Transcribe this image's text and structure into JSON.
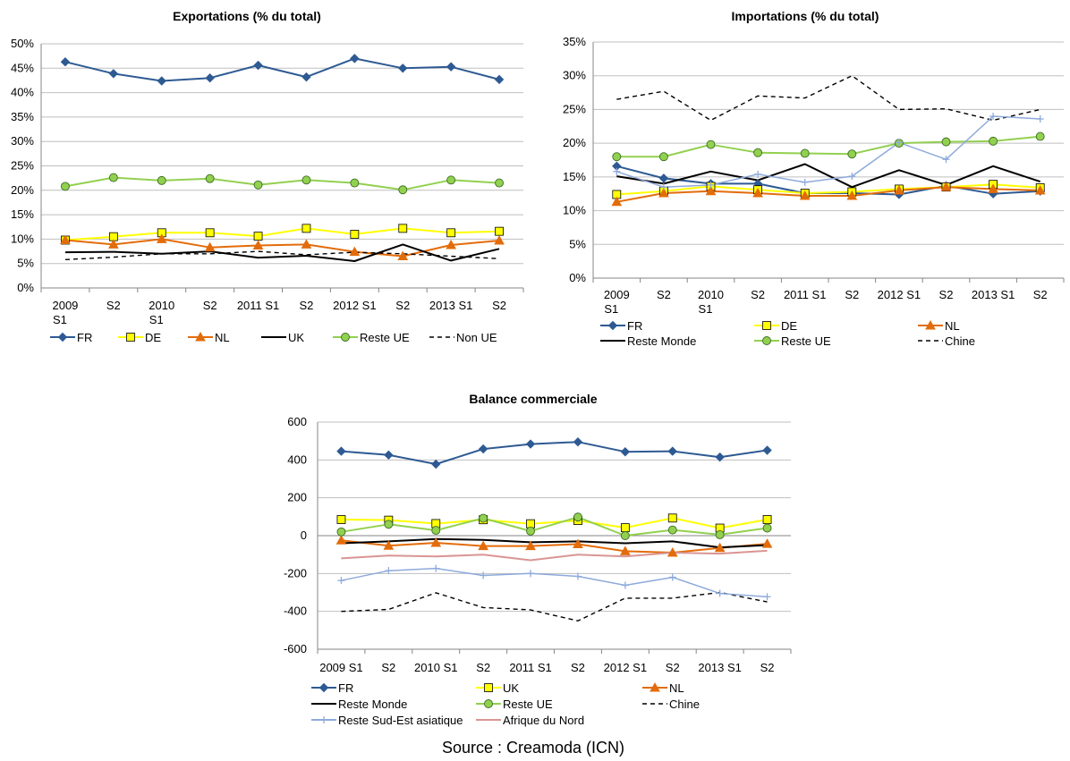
{
  "colors": {
    "FR": "#2e5a93",
    "DE": "#ffff00",
    "UK_export": "#000000",
    "UK_balance": "#ffff00",
    "NL": "#e36c0a",
    "Reste UE": "#92d050",
    "Reste Monde": "#000000",
    "Non UE": "#000000",
    "Chine": "#000000",
    "Reste Sud-Est asiatique": "#8eaadb",
    "Afrique du Nord": "#d99594",
    "grid": "#bfbfbf"
  },
  "source": "Source : Creamoda (ICN)",
  "chart_data": [
    {
      "type": "line",
      "title": "Exportations (% du total)",
      "x": [
        "2009 S1",
        "S2",
        "2010 S1",
        "S2",
        "2011 S1",
        "S2",
        "2012 S1",
        "S2",
        "2013 S1",
        "S2"
      ],
      "ylim": [
        0,
        50
      ],
      "yticks": [
        "0%",
        "5%",
        "10%",
        "15%",
        "20%",
        "25%",
        "30%",
        "35%",
        "40%",
        "45%",
        "50%"
      ],
      "grid": true,
      "legend_position": "bottom",
      "series": [
        {
          "name": "FR",
          "marker": "diamond",
          "values": [
            46.3,
            43.9,
            42.4,
            43.0,
            45.6,
            43.2,
            47.0,
            45.0,
            45.3,
            42.7
          ]
        },
        {
          "name": "DE",
          "marker": "square",
          "values": [
            9.8,
            10.5,
            11.3,
            11.3,
            10.6,
            12.2,
            11.0,
            12.2,
            11.3,
            11.6
          ]
        },
        {
          "name": "NL",
          "marker": "triangle",
          "values": [
            9.8,
            8.9,
            10.0,
            8.3,
            8.7,
            8.9,
            7.4,
            6.5,
            8.8,
            9.7
          ]
        },
        {
          "name": "UK",
          "marker": "none",
          "values": [
            7.3,
            7.4,
            7.0,
            7.5,
            6.2,
            6.6,
            5.5,
            8.9,
            5.6,
            8.0
          ]
        },
        {
          "name": "Reste UE",
          "marker": "circle",
          "values": [
            20.8,
            22.6,
            22.0,
            22.4,
            21.1,
            22.1,
            21.5,
            20.1,
            22.1,
            21.5
          ]
        },
        {
          "name": "Non UE",
          "marker": "none",
          "dashed": true,
          "values": [
            5.8,
            6.3,
            7.0,
            7.0,
            7.5,
            6.8,
            7.3,
            7.0,
            6.5,
            6.0
          ]
        }
      ]
    },
    {
      "type": "line",
      "title": "Importations (% du total)",
      "x": [
        "2009 S1",
        "S2",
        "2010 S1",
        "S2",
        "2011 S1",
        "S2",
        "2012 S1",
        "S2",
        "2013 S1",
        "S2"
      ],
      "ylim": [
        0,
        35
      ],
      "yticks": [
        "0%",
        "5%",
        "10%",
        "15%",
        "20%",
        "25%",
        "30%",
        "35%"
      ],
      "grid": true,
      "legend_position": "bottom",
      "series": [
        {
          "name": "FR",
          "marker": "diamond",
          "values": [
            16.6,
            14.8,
            14.0,
            14.0,
            12.6,
            12.6,
            12.4,
            13.7,
            12.5,
            12.9
          ]
        },
        {
          "name": "DE",
          "marker": "square",
          "values": [
            12.4,
            12.9,
            13.6,
            13.1,
            12.6,
            12.8,
            13.2,
            13.5,
            13.9,
            13.4
          ]
        },
        {
          "name": "NL",
          "marker": "triangle",
          "values": [
            11.3,
            12.6,
            12.9,
            12.6,
            12.2,
            12.2,
            13.0,
            13.5,
            13.2,
            13.0
          ]
        },
        {
          "name": "Reste Monde",
          "marker": "none",
          "values": [
            15.1,
            14.0,
            15.8,
            14.5,
            16.9,
            13.5,
            16.0,
            13.8,
            16.6,
            14.3
          ]
        },
        {
          "name": "Reste UE",
          "marker": "circle",
          "values": [
            18.0,
            18.0,
            19.8,
            18.6,
            18.5,
            18.4,
            20.0,
            20.2,
            20.3,
            21.0
          ]
        },
        {
          "name": "Chine",
          "marker": "none",
          "dashed": true,
          "values": [
            26.5,
            27.7,
            23.4,
            27.0,
            26.7,
            30.0,
            25.0,
            25.1,
            23.4,
            25.0
          ]
        },
        {
          "name": "",
          "marker": "plus",
          "unlabeled": true,
          "values": [
            15.8,
            13.5,
            13.8,
            15.4,
            14.2,
            15.1,
            20.1,
            17.6,
            24.0,
            23.6
          ]
        }
      ]
    },
    {
      "type": "line",
      "title": "Balance commerciale",
      "x": [
        "2009 S1",
        "S2",
        "2010 S1",
        "S2",
        "2011 S1",
        "S2",
        "2012 S1",
        "S2",
        "2013 S1",
        "S2"
      ],
      "ylim": [
        -600,
        600
      ],
      "yticks": [
        "-600",
        "-400",
        "-200",
        "0",
        "200",
        "400",
        "600"
      ],
      "grid": true,
      "legend_position": "bottom",
      "series": [
        {
          "name": "FR",
          "marker": "diamond",
          "values": [
            446,
            426,
            378,
            458,
            484,
            495,
            443,
            446,
            415,
            451
          ]
        },
        {
          "name": "UK",
          "marker": "square",
          "values": [
            85,
            82,
            64,
            84,
            63,
            80,
            42,
            93,
            40,
            85
          ]
        },
        {
          "name": "NL",
          "marker": "triangle",
          "values": [
            -25,
            -53,
            -38,
            -55,
            -55,
            -45,
            -82,
            -90,
            -65,
            -43
          ]
        },
        {
          "name": "Reste Monde",
          "marker": "none",
          "values": [
            -40,
            -30,
            -18,
            -22,
            -35,
            -30,
            -40,
            -30,
            -62,
            -50
          ]
        },
        {
          "name": "Reste UE",
          "marker": "circle",
          "values": [
            20,
            60,
            28,
            92,
            24,
            98,
            0,
            30,
            5,
            40
          ]
        },
        {
          "name": "Chine",
          "marker": "none",
          "dashed": true,
          "values": [
            -400,
            -390,
            -302,
            -380,
            -392,
            -450,
            -330,
            -330,
            -300,
            -350
          ]
        },
        {
          "name": "Reste Sud-Est asiatique",
          "marker": "plus",
          "values": [
            -237,
            -185,
            -173,
            -210,
            -200,
            -215,
            -262,
            -220,
            -305,
            -323
          ]
        },
        {
          "name": "Afrique du Nord",
          "marker": "none",
          "values": [
            -120,
            -105,
            -110,
            -100,
            -130,
            -100,
            -110,
            -90,
            -95,
            -80
          ]
        }
      ]
    }
  ]
}
